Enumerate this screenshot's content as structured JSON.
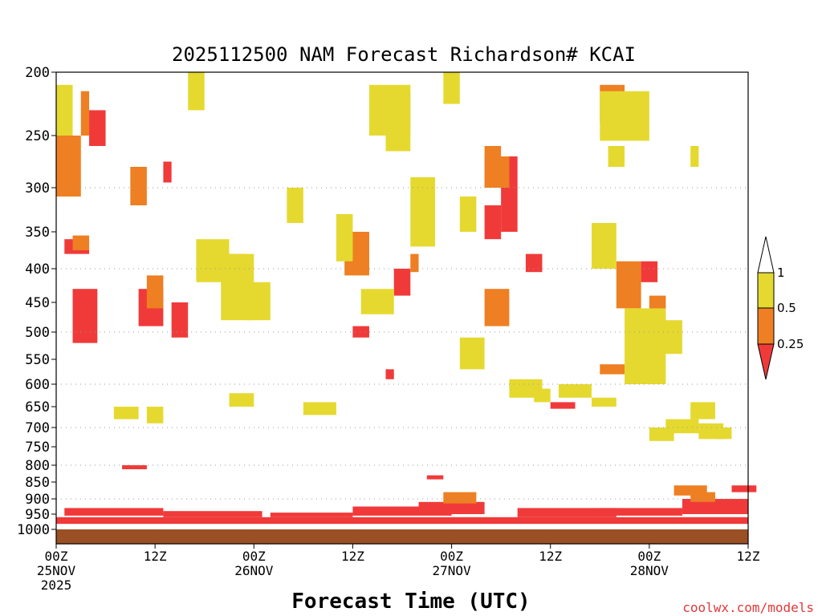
{
  "chart_data": {
    "type": "heatmap",
    "title": "2025112500 NAM Forecast Richardson# KCAI",
    "xlabel": "Forecast Time (UTC)",
    "credit": "coolwx.com/models",
    "x_range_hours": [
      0,
      84
    ],
    "y_range_hPa": [
      200,
      1016
    ],
    "y_ticks": [
      {
        "label": "200",
        "value": 200
      },
      {
        "label": "250",
        "value": 250
      },
      {
        "label": "300",
        "value": 300
      },
      {
        "label": "350",
        "value": 350
      },
      {
        "label": "400",
        "value": 400
      },
      {
        "label": "450",
        "value": 450
      },
      {
        "label": "500",
        "value": 500
      },
      {
        "label": "550",
        "value": 550
      },
      {
        "label": "600",
        "value": 600
      },
      {
        "label": "650",
        "value": 650
      },
      {
        "label": "700",
        "value": 700
      },
      {
        "label": "750",
        "value": 750
      },
      {
        "label": "800",
        "value": 800
      },
      {
        "label": "850",
        "value": 850
      },
      {
        "label": "900",
        "value": 900
      },
      {
        "label": "950",
        "value": 950
      },
      {
        "label": "1000",
        "value": 1000
      }
    ],
    "dotted_gridlines_hPa": [
      300,
      400,
      500,
      600,
      700,
      800,
      900
    ],
    "x_ticks": [
      {
        "hour": 0,
        "lines": [
          "00Z",
          "25NOV",
          "2025"
        ]
      },
      {
        "hour": 12,
        "lines": [
          "12Z"
        ]
      },
      {
        "hour": 24,
        "lines": [
          "00Z",
          "26NOV"
        ]
      },
      {
        "hour": 36,
        "lines": [
          "12Z"
        ]
      },
      {
        "hour": 48,
        "lines": [
          "00Z",
          "27NOV"
        ]
      },
      {
        "hour": 60,
        "lines": [
          "12Z"
        ]
      },
      {
        "hour": 72,
        "lines": [
          "00Z",
          "28NOV"
        ]
      },
      {
        "hour": 84,
        "lines": [
          "12Z"
        ]
      }
    ],
    "colorbar": {
      "labels": [
        "1",
        "0.5",
        "0.25"
      ],
      "bins": [
        {
          "range": "<0.25",
          "color": "#f03a3a"
        },
        {
          "range": "0.25-0.5",
          "color": "#ee7f22"
        },
        {
          "range": "0.5-1",
          "color": "#e5d930"
        },
        {
          "range": ">1",
          "color": "#ffffff"
        }
      ]
    },
    "ground_color": "#9a4f25",
    "series": [
      {
        "name": "Ri<0.25",
        "color": "#f03a3a",
        "cells": [
          [
            0,
            960,
            84,
            22
          ],
          [
            1,
            930,
            12,
            25
          ],
          [
            13,
            940,
            12,
            20
          ],
          [
            26,
            945,
            10,
            15
          ],
          [
            36,
            925,
            12,
            30
          ],
          [
            44,
            910,
            8,
            40
          ],
          [
            56,
            930,
            12,
            30
          ],
          [
            66,
            930,
            10,
            25
          ],
          [
            76,
            900,
            8,
            50
          ],
          [
            80,
            905,
            4,
            45
          ],
          [
            1,
            360,
            3,
            20
          ],
          [
            2,
            430,
            3,
            90
          ],
          [
            8,
            800,
            3,
            12
          ],
          [
            10,
            430,
            3,
            60
          ],
          [
            14,
            450,
            2,
            60
          ],
          [
            4,
            230,
            2,
            30
          ],
          [
            13,
            275,
            1,
            20
          ],
          [
            41,
            400,
            2,
            40
          ],
          [
            45,
            830,
            2,
            12
          ],
          [
            54,
            270,
            2,
            80
          ],
          [
            57,
            380,
            2,
            25
          ],
          [
            52,
            320,
            2,
            40
          ],
          [
            60,
            640,
            3,
            15
          ],
          [
            71,
            390,
            2,
            30
          ],
          [
            82,
            860,
            3,
            20
          ],
          [
            36,
            490,
            2,
            20
          ],
          [
            40,
            570,
            1,
            20
          ]
        ]
      },
      {
        "name": "Ri 0.25-0.5",
        "color": "#ee7f22",
        "cells": [
          [
            0,
            250,
            3,
            60
          ],
          [
            3,
            215,
            1,
            35
          ],
          [
            2,
            355,
            2,
            20
          ],
          [
            9,
            280,
            2,
            40
          ],
          [
            11,
            410,
            2,
            50
          ],
          [
            21,
            380,
            2,
            30
          ],
          [
            35,
            350,
            3,
            60
          ],
          [
            43,
            380,
            1,
            25
          ],
          [
            52,
            260,
            2,
            40
          ],
          [
            52,
            270,
            3,
            30
          ],
          [
            47,
            880,
            4,
            35
          ],
          [
            52,
            430,
            3,
            60
          ],
          [
            66,
            210,
            3,
            30
          ],
          [
            68,
            390,
            3,
            70
          ],
          [
            72,
            440,
            2,
            40
          ],
          [
            75,
            860,
            4,
            30
          ],
          [
            77,
            880,
            3,
            30
          ],
          [
            66,
            560,
            3,
            20
          ]
        ]
      },
      {
        "name": "Ri 0.5-1",
        "color": "#e5d930",
        "cells": [
          [
            0,
            210,
            2,
            40
          ],
          [
            16,
            200,
            2,
            30
          ],
          [
            38,
            210,
            5,
            40
          ],
          [
            40,
            215,
            3,
            50
          ],
          [
            47,
            200,
            2,
            25
          ],
          [
            66,
            215,
            6,
            40
          ],
          [
            17,
            360,
            4,
            60
          ],
          [
            20,
            380,
            4,
            100
          ],
          [
            23,
            420,
            3,
            60
          ],
          [
            28,
            300,
            2,
            40
          ],
          [
            34,
            330,
            2,
            60
          ],
          [
            37,
            430,
            4,
            40
          ],
          [
            43,
            290,
            3,
            80
          ],
          [
            49,
            310,
            2,
            40
          ],
          [
            49,
            510,
            3,
            60
          ],
          [
            55,
            590,
            4,
            40
          ],
          [
            65,
            340,
            3,
            60
          ],
          [
            69,
            460,
            5,
            140
          ],
          [
            72,
            700,
            3,
            35
          ],
          [
            74,
            680,
            4,
            35
          ],
          [
            73,
            480,
            3,
            60
          ],
          [
            77,
            640,
            3,
            40
          ],
          [
            78,
            690,
            3,
            40
          ],
          [
            80,
            700,
            2,
            30
          ],
          [
            67,
            260,
            2,
            20
          ],
          [
            77,
            260,
            1,
            20
          ],
          [
            30,
            640,
            4,
            30
          ],
          [
            21,
            620,
            3,
            30
          ],
          [
            7,
            650,
            3,
            30
          ],
          [
            11,
            650,
            2,
            40
          ],
          [
            61,
            600,
            4,
            30
          ],
          [
            65,
            630,
            3,
            20
          ],
          [
            58,
            610,
            2,
            30
          ]
        ]
      }
    ]
  }
}
